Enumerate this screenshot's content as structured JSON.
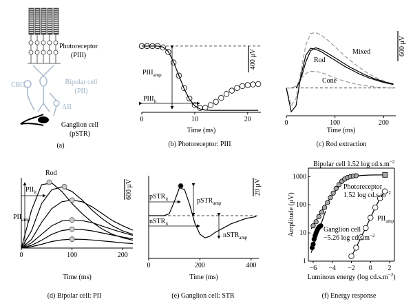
{
  "diagram": {
    "photoreceptor": [
      "Photoreceptor",
      "(PIII)"
    ],
    "bipolar": [
      "Bipolar cell",
      "(PII)"
    ],
    "cbc": "CBC",
    "aii": "AII",
    "ganglion": [
      "Ganglion cell",
      "(pSTR)"
    ],
    "caption": "(a)"
  },
  "chart_data": [
    {
      "type": "line",
      "caption": "(b) Photoreceptor: PIII",
      "x_label": "Time (ms)",
      "xlim": [
        0,
        22.5
      ],
      "xticks": [
        0,
        10,
        20
      ],
      "ylim": [
        -1010,
        20
      ],
      "axes": "bottom",
      "reference_line": 0,
      "scale_bar": {
        "value": 400,
        "label": "400 μV"
      },
      "series": [
        {
          "color": "#000000",
          "marker": "open-circle",
          "line": false,
          "x": [
            0,
            1,
            2,
            3,
            4,
            5,
            6,
            7,
            8,
            9,
            10,
            11,
            12,
            13,
            14,
            15,
            16,
            17,
            18,
            19,
            20,
            21,
            22
          ],
          "values": [
            0,
            0,
            0,
            0,
            -20,
            -90,
            -250,
            -450,
            -640,
            -800,
            -900,
            -945,
            -940,
            -900,
            -850,
            -790,
            -730,
            -680,
            -640,
            -610,
            -595,
            -585,
            -580
          ]
        },
        {
          "color": "#000000",
          "line": true,
          "x": [
            0,
            3,
            4,
            5,
            6,
            7,
            8,
            9,
            10,
            11,
            12,
            13,
            14,
            22
          ],
          "values": [
            0,
            0,
            -15,
            -80,
            -240,
            -450,
            -650,
            -810,
            -910,
            -960,
            -975,
            -980,
            -980,
            -980
          ]
        }
      ],
      "annotations": [
        [
          [
            "PIII",
            {
              "sub": "amp"
            }
          ]
        ],
        [
          [
            "PIII",
            {
              "sub": "it"
            }
          ]
        ]
      ]
    },
    {
      "type": "line",
      "caption": "(c) Rod extraction",
      "x_label": "Time (ms)",
      "xlim": [
        0,
        225
      ],
      "xticks": [
        0,
        100,
        200
      ],
      "ylim": [
        -550,
        1200
      ],
      "axes": "bottom",
      "reference_line": 0,
      "scale_bar": {
        "value": 600,
        "label": "600 μV"
      },
      "x": [
        0,
        10,
        20,
        30,
        40,
        50,
        60,
        70,
        80,
        90,
        100,
        110,
        120,
        130,
        140,
        150,
        160,
        170,
        180,
        190,
        200,
        210,
        220
      ],
      "series": [
        {
          "name": "Mixed",
          "color": "#999999",
          "dash": true,
          "values": [
            0,
            -350,
            -200,
            350,
            850,
            1080,
            1100,
            1060,
            990,
            910,
            820,
            730,
            640,
            560,
            480,
            410,
            340,
            280,
            230,
            180,
            140,
            110,
            80
          ]
        },
        {
          "color": "#000000",
          "values": [
            0,
            -470,
            -350,
            250,
            650,
            790,
            770,
            730,
            670,
            610,
            550,
            490,
            430,
            380,
            330,
            280,
            240,
            200,
            170,
            140,
            110,
            90,
            70
          ]
        },
        {
          "name": "Rod",
          "color": "#000000",
          "values": [
            null,
            null,
            0,
            180,
            520,
            740,
            800,
            770,
            720,
            660,
            600,
            540,
            480,
            420,
            370,
            320,
            270,
            230,
            190,
            160,
            130,
            100,
            80
          ]
        },
        {
          "name": "Cone",
          "color": "#999999",
          "dash": true,
          "values": [
            0,
            0,
            40,
            190,
            290,
            330,
            330,
            310,
            280,
            240,
            200,
            165,
            135,
            110,
            85,
            65,
            50,
            35,
            25,
            15,
            10,
            5,
            0
          ]
        }
      ]
    },
    {
      "type": "line",
      "caption": "(d) Bipolar cell: PII",
      "x_label": "Time (ms)",
      "xlim": [
        0,
        220
      ],
      "xticks": [
        0,
        100,
        200
      ],
      "ylim": [
        0,
        2050
      ],
      "axes": "bottom-left",
      "scale_bar": {
        "value": 600,
        "label": "600 μV"
      },
      "x": [
        0,
        20,
        40,
        60,
        80,
        100,
        120,
        140,
        160,
        180,
        200,
        220
      ],
      "series": [
        {
          "name": "Rod",
          "color": "#000000",
          "values": [
            0,
            1100,
            1850,
            1900,
            1650,
            1300,
            1000,
            750,
            550,
            400,
            300,
            230
          ],
          "peak": {
            "x": 55,
            "y": 1920
          }
        },
        {
          "color": "#000000",
          "values": [
            0,
            500,
            1300,
            1700,
            1780,
            1650,
            1400,
            1100,
            850,
            650,
            500,
            400
          ],
          "peak": {
            "x": 85,
            "y": 1790
          }
        },
        {
          "color": "#000000",
          "values": [
            0,
            250,
            750,
            1150,
            1350,
            1400,
            1350,
            1200,
            1000,
            800,
            650,
            520
          ],
          "peak": {
            "x": 100,
            "y": 1400
          }
        },
        {
          "color": "#000000",
          "values": [
            0,
            150,
            400,
            650,
            790,
            820,
            800,
            740,
            640,
            540,
            450,
            370
          ],
          "peak": {
            "x": 100,
            "y": 820
          }
        },
        {
          "color": "#000000",
          "values": [
            0,
            80,
            230,
            400,
            510,
            550,
            540,
            500,
            440,
            380,
            320,
            270
          ],
          "peak": {
            "x": 100,
            "y": 550
          }
        },
        {
          "color": "#000000",
          "values": [
            0,
            40,
            110,
            190,
            240,
            260,
            255,
            235,
            210,
            180,
            150,
            130
          ],
          "peak": {
            "x": 100,
            "y": 260
          }
        }
      ],
      "annotations": [
        [
          [
            "PII",
            {
              "sub": "it"
            }
          ]
        ],
        [
          [
            "PII",
            {
              "sub": "amp"
            }
          ]
        ]
      ]
    },
    {
      "type": "line",
      "caption": "(e) Ganglion cell: STR",
      "x_label": "Time (ms)",
      "xlim": [
        0,
        430
      ],
      "xticks": [
        0,
        200,
        400
      ],
      "ylim": [
        -46,
        43
      ],
      "axes": "bottom-left",
      "reference_line": 0,
      "scale_bar": {
        "value": 20,
        "label": "20 μV"
      },
      "x": [
        0,
        20,
        40,
        60,
        80,
        100,
        120,
        140,
        160,
        180,
        200,
        220,
        240,
        260,
        280,
        300,
        320,
        340,
        360,
        380,
        400,
        420
      ],
      "series": [
        {
          "color": "#000000",
          "values": [
            0,
            0,
            0,
            0,
            2,
            15,
            30,
            28,
            12,
            -8,
            -20,
            -24,
            -22,
            -18,
            -15,
            -12,
            -9,
            -7,
            -5,
            -3,
            -2,
            -1
          ],
          "peak": {
            "x": 125,
            "y": 32
          },
          "peak_fill": "#000000"
        }
      ],
      "annotations": [
        [
          [
            "pSTR",
            {
              "sub": "it"
            }
          ]
        ],
        [
          [
            "pSTR",
            {
              "sub": "amp"
            }
          ]
        ],
        [
          [
            "nSTR",
            {
              "sub": "it"
            }
          ]
        ],
        [
          [
            "nSTR",
            {
              "sub": "amp"
            }
          ]
        ]
      ]
    },
    {
      "type": "scatter",
      "caption": "(f) Energy response",
      "x_label": [
        [
          "Luminous energy (log cd.s.m",
          {
            "sup": "−2"
          },
          ")"
        ]
      ],
      "y_label": "Amplitude (μV)",
      "xlim": [
        -6.5,
        2.5
      ],
      "xticks": [
        {
          "value": -6,
          "label": "−6"
        },
        {
          "value": -4,
          "label": "−4"
        },
        {
          "value": -2,
          "label": "−2"
        },
        0,
        2
      ],
      "ylim": [
        1,
        2000
      ],
      "yticks": [
        1,
        10,
        100,
        1000
      ],
      "log_y": true,
      "axes": "box",
      "series": [
        {
          "color": "#000000",
          "line": true,
          "x": [
            -6.2,
            -5,
            -4,
            -3,
            -2,
            -1,
            0,
            1.52
          ],
          "values": [
            14,
            70,
            220,
            600,
            950,
            1100,
            1140,
            1150
          ]
        },
        {
          "color": "#aaaaaa",
          "marker": "circle",
          "line": false,
          "x": [
            -6,
            -5.7,
            -5.4,
            -5.1,
            -4.8,
            -4.5,
            -4.2,
            -3.9,
            -3.6,
            -3.3,
            -3,
            -2.7,
            -2.4,
            -2.1,
            -1.8,
            -1.5
          ],
          "values": [
            18,
            25,
            38,
            55,
            80,
            120,
            180,
            260,
            380,
            520,
            680,
            820,
            930,
            1000,
            1050,
            1080
          ]
        },
        {
          "color": "#aaaaaa",
          "marker": "square",
          "line": false,
          "x": [
            1.52
          ],
          "values": [
            1150
          ]
        },
        {
          "color": "#ffffff",
          "marker": "open-circle",
          "line": true,
          "x": [
            -2,
            -1.5,
            -1,
            -0.5,
            0,
            0.5,
            1,
            1.5
          ],
          "values": [
            1.5,
            3,
            7,
            15,
            35,
            80,
            170,
            300
          ]
        },
        {
          "color": "#000000",
          "line": true,
          "x": [
            -6.2,
            -4.7
          ],
          "values": [
            2,
            60
          ]
        },
        {
          "color": "#000000",
          "marker": "circle",
          "line": false,
          "x": [
            -6.1,
            -6,
            -5.9,
            -5.8,
            -5.7,
            -5.6,
            -5.5,
            -5.4,
            -5.3,
            -5.2
          ],
          "values": [
            3,
            4,
            6,
            8,
            10,
            12,
            14,
            16,
            17,
            18
          ]
        }
      ],
      "annotations": [
        [
          [
            "Bipolar cell 1.52 log cd.s.m",
            {
              "sup": "−2"
            }
          ]
        ],
        [
          [
            "Photoreceptor"
          ],
          [
            "1.52 log cd.s.m",
            {
              "sup": "−2"
            }
          ]
        ],
        [
          [
            "Ganglion cell"
          ],
          [
            "−5.26 log cd.s.m",
            {
              "sup": "−2"
            }
          ]
        ],
        [
          [
            "PII",
            {
              "sub": "amp"
            }
          ]
        ]
      ]
    }
  ]
}
